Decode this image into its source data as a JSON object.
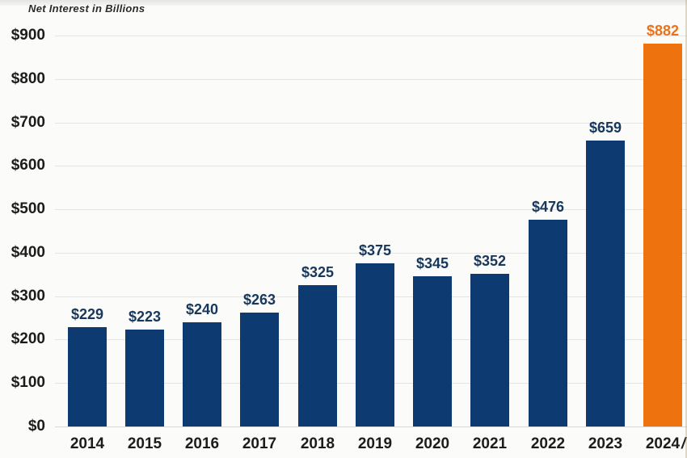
{
  "title": "Net Interest in Billions",
  "colors": {
    "bar": "#0e3a72",
    "highlight_bar": "#ee720e",
    "bar_label": "#17375c",
    "highlight_label": "#e9731d",
    "axis_text": "#1c1c1c",
    "gridline": "#e4e4e4",
    "background": "#fbfbf9"
  },
  "chart_data": {
    "type": "bar",
    "title": "Net Interest in Billions",
    "categories": [
      "2014",
      "2015",
      "2016",
      "2017",
      "2018",
      "2019",
      "2020",
      "2021",
      "2022",
      "2023",
      "2024"
    ],
    "values": [
      229,
      223,
      240,
      263,
      325,
      375,
      345,
      352,
      476,
      659,
      882
    ],
    "bar_labels": [
      "$229",
      "$223",
      "$240",
      "$263",
      "$325",
      "$375",
      "$345",
      "$352",
      "$476",
      "$659",
      "$882"
    ],
    "highlight_index": 10,
    "y_ticks": [
      "$0",
      "$100",
      "$200",
      "$300",
      "$400",
      "$500",
      "$600",
      "$700",
      "$800",
      "$900"
    ],
    "y_tick_values": [
      0,
      100,
      200,
      300,
      400,
      500,
      600,
      700,
      800,
      900
    ],
    "xlabel": "",
    "ylabel": "",
    "ylim": [
      0,
      900
    ],
    "grid": true,
    "legend": "none",
    "clipped_suffix_after_last_category": "/"
  }
}
